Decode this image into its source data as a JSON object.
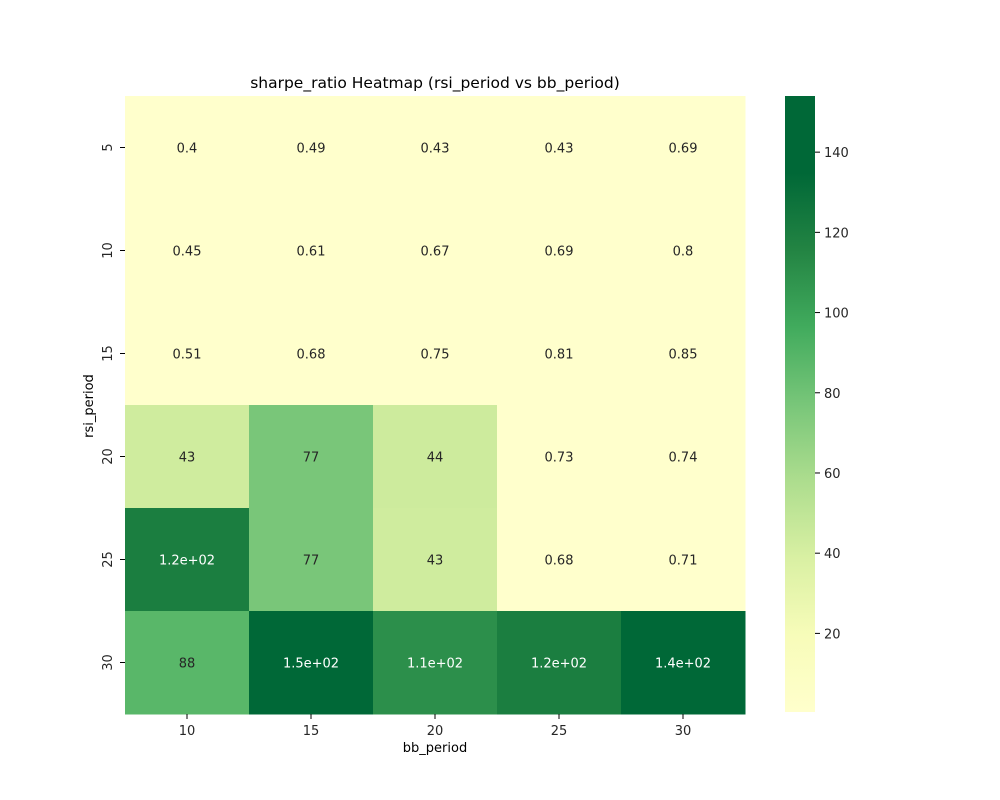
{
  "chart_data": {
    "type": "heatmap",
    "title": "sharpe_ratio Heatmap (rsi_period vs bb_period)",
    "xlabel": "bb_period",
    "ylabel": "rsi_period",
    "x_categories": [
      "10",
      "15",
      "20",
      "25",
      "30"
    ],
    "y_categories": [
      "5",
      "10",
      "15",
      "20",
      "25",
      "30"
    ],
    "values": [
      [
        0.4,
        0.49,
        0.43,
        0.43,
        0.69
      ],
      [
        0.45,
        0.61,
        0.67,
        0.69,
        0.8
      ],
      [
        0.51,
        0.68,
        0.75,
        0.81,
        0.85
      ],
      [
        43,
        77,
        44,
        0.73,
        0.74
      ],
      [
        120,
        77,
        43,
        0.68,
        0.71
      ],
      [
        88,
        150,
        110,
        120,
        140
      ]
    ],
    "annotations": [
      [
        "0.4",
        "0.49",
        "0.43",
        "0.43",
        "0.69"
      ],
      [
        "0.45",
        "0.61",
        "0.67",
        "0.69",
        "0.8"
      ],
      [
        "0.51",
        "0.68",
        "0.75",
        "0.81",
        "0.85"
      ],
      [
        "43",
        "77",
        "44",
        "0.73",
        "0.74"
      ],
      [
        "1.2e+02",
        "77",
        "43",
        "0.68",
        "0.71"
      ],
      [
        "88",
        "1.5e+02",
        "1.1e+02",
        "1.2e+02",
        "1.4e+02"
      ]
    ],
    "colormap": "YlGn",
    "colorbar": {
      "range": [
        0.4,
        154
      ],
      "ticks": [
        20,
        40,
        60,
        80,
        100,
        120,
        140
      ]
    },
    "colors": {
      "low": "#ffffcc",
      "high": "#006837"
    }
  }
}
